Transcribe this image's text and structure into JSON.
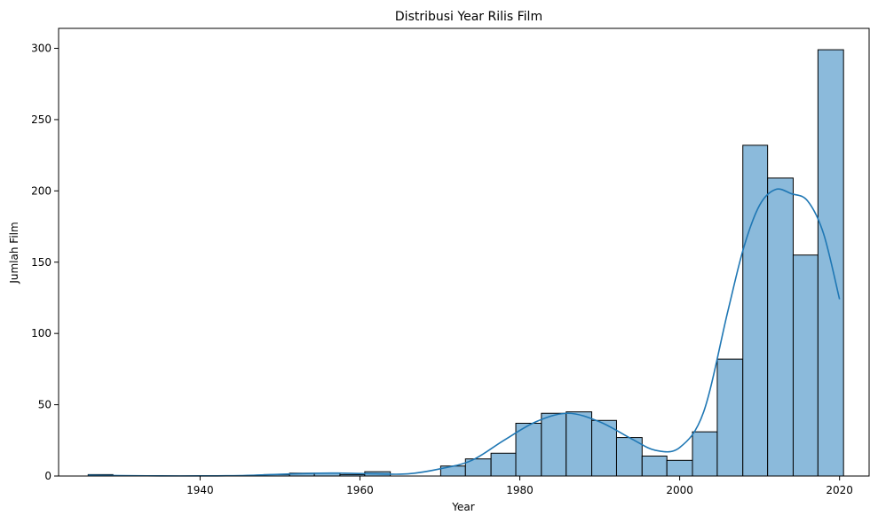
{
  "chart_data": {
    "type": "bar",
    "title": "Distribusi Year Rilis Film",
    "xlabel": "Year",
    "ylabel": "Jumlah Film",
    "xlim": [
      1922.3,
      2023.7
    ],
    "ylim": [
      0,
      314
    ],
    "x_ticks": [
      1940,
      1960,
      1980,
      2000,
      2020
    ],
    "y_ticks": [
      0,
      50,
      100,
      150,
      200,
      250,
      300
    ],
    "bar_color": "#8bbadb",
    "edge_color": "#000000",
    "kde_color": "#1f77b4",
    "bins": [
      {
        "start": 1926.0,
        "end": 1929.1,
        "count": 1
      },
      {
        "start": 1929.1,
        "end": 1932.3,
        "count": 0
      },
      {
        "start": 1932.3,
        "end": 1935.4,
        "count": 0
      },
      {
        "start": 1935.4,
        "end": 1938.6,
        "count": 0
      },
      {
        "start": 1938.6,
        "end": 1941.7,
        "count": 0
      },
      {
        "start": 1941.7,
        "end": 1944.9,
        "count": 0
      },
      {
        "start": 1944.9,
        "end": 1948.0,
        "count": 0
      },
      {
        "start": 1948.0,
        "end": 1951.2,
        "count": 1
      },
      {
        "start": 1951.2,
        "end": 1954.3,
        "count": 2
      },
      {
        "start": 1954.3,
        "end": 1957.5,
        "count": 2
      },
      {
        "start": 1957.5,
        "end": 1960.6,
        "count": 1
      },
      {
        "start": 1960.6,
        "end": 1963.8,
        "count": 3
      },
      {
        "start": 1963.8,
        "end": 1966.9,
        "count": 0
      },
      {
        "start": 1966.9,
        "end": 1970.1,
        "count": 0
      },
      {
        "start": 1970.1,
        "end": 1973.2,
        "count": 7
      },
      {
        "start": 1973.2,
        "end": 1976.4,
        "count": 12
      },
      {
        "start": 1976.4,
        "end": 1979.5,
        "count": 16
      },
      {
        "start": 1979.5,
        "end": 1982.7,
        "count": 37
      },
      {
        "start": 1982.7,
        "end": 1985.8,
        "count": 44
      },
      {
        "start": 1985.8,
        "end": 1989.0,
        "count": 45
      },
      {
        "start": 1989.0,
        "end": 1992.1,
        "count": 39
      },
      {
        "start": 1992.1,
        "end": 1995.3,
        "count": 27
      },
      {
        "start": 1995.3,
        "end": 1998.4,
        "count": 14
      },
      {
        "start": 1998.4,
        "end": 2001.6,
        "count": 11
      },
      {
        "start": 2001.6,
        "end": 2004.7,
        "count": 31
      },
      {
        "start": 2004.7,
        "end": 2007.9,
        "count": 82
      },
      {
        "start": 2007.9,
        "end": 2011.0,
        "count": 232
      },
      {
        "start": 2011.0,
        "end": 2014.2,
        "count": 209
      },
      {
        "start": 2014.2,
        "end": 2017.3,
        "count": 155
      },
      {
        "start": 2017.3,
        "end": 2020.5,
        "count": 299
      }
    ],
    "kde": {
      "x": [
        1926,
        1930,
        1935,
        1940,
        1945,
        1950,
        1955,
        1958,
        1962,
        1966,
        1970,
        1974,
        1978,
        1982,
        1986,
        1990,
        1994,
        1997,
        2000,
        2003,
        2006,
        2008,
        2010,
        2012,
        2014,
        2016,
        2018,
        2020
      ],
      "y": [
        0.5,
        0.3,
        0.1,
        0.1,
        0.3,
        1.2,
        2.0,
        2.0,
        1.5,
        1.5,
        5,
        11,
        25,
        38,
        44,
        38,
        26,
        18,
        20,
        45,
        115,
        160,
        190,
        201,
        198,
        193,
        170,
        124
      ]
    }
  }
}
